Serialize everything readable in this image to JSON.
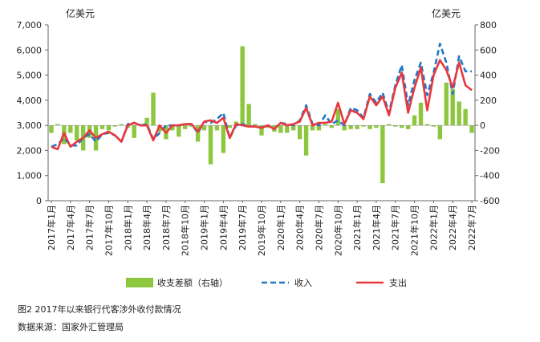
{
  "chart_data": {
    "type": "bar+line",
    "left_unit": "亿美元",
    "right_unit": "亿美元",
    "left_axis": {
      "min": 0,
      "max": 7000,
      "step": 1000,
      "ticks": [
        "0",
        "1,000",
        "2,000",
        "3,000",
        "4,000",
        "5,000",
        "6,000",
        "7,000"
      ]
    },
    "right_axis": {
      "min": -600,
      "max": 800,
      "step": 200,
      "ticks": [
        "-600",
        "-400",
        "-200",
        "0",
        "200",
        "400",
        "600",
        "800"
      ]
    },
    "x_tick_labels": [
      "2017年1月",
      "2017年4月",
      "2017年7月",
      "2017年10月",
      "2018年1月",
      "2018年4月",
      "2018年7月",
      "2018年10月",
      "2019年1月",
      "2019年4月",
      "2019年7月",
      "2019年10月",
      "2020年1月",
      "2020年4月",
      "2020年7月",
      "2020年10月",
      "2021年1月",
      "2021年4月",
      "2021年7月",
      "2021年10月",
      "2022年1月",
      "2022年4月",
      "2022年7月"
    ],
    "months_count": 67,
    "series": [
      {
        "name": "收支差额（右轴）",
        "kind": "bar",
        "axis": "right",
        "color": "#8dc63f",
        "values": [
          -60,
          10,
          -150,
          -60,
          -120,
          -200,
          -100,
          -200,
          -30,
          -40,
          -10,
          10,
          -20,
          -100,
          10,
          60,
          260,
          -50,
          -110,
          -40,
          -90,
          -30,
          -10,
          -130,
          -40,
          -310,
          -40,
          -220,
          -20,
          30,
          630,
          170,
          10,
          -80,
          -20,
          -50,
          -60,
          -60,
          -40,
          -110,
          -240,
          -40,
          -40,
          10,
          -20,
          130,
          -40,
          -30,
          -30,
          -10,
          -30,
          -20,
          -460,
          10,
          -10,
          -20,
          -30,
          80,
          180,
          10,
          -10,
          -110,
          340,
          290,
          190,
          130,
          -60
        ]
      },
      {
        "name": "收入",
        "kind": "line",
        "axis": "left",
        "color": "#1f77c8",
        "dash": true,
        "values": [
          2150,
          2250,
          2500,
          2200,
          2200,
          2500,
          2650,
          2350,
          2650,
          2700,
          2600,
          2350,
          3050,
          3100,
          3000,
          3050,
          2450,
          2700,
          3000,
          3000,
          3000,
          3050,
          3050,
          2700,
          3150,
          3100,
          3250,
          3500,
          2500,
          3000,
          3050,
          2950,
          2950,
          2900,
          3000,
          2850,
          3100,
          3050,
          3000,
          3200,
          3800,
          3050,
          3000,
          3400,
          3050,
          3200,
          3000,
          3700,
          3600,
          3300,
          4250,
          3900,
          4300,
          3500,
          4600,
          5400,
          3800,
          4800,
          5500,
          4200,
          5100,
          6250,
          5500,
          4250,
          5750,
          5150,
          5150
        ]
      },
      {
        "name": "支出",
        "kind": "line",
        "axis": "left",
        "color": "#e8383d",
        "dash": false,
        "values": [
          2150,
          2050,
          2700,
          2150,
          2350,
          2500,
          2800,
          2500,
          2650,
          2750,
          2600,
          2350,
          3000,
          3100,
          3000,
          3000,
          2400,
          3000,
          2700,
          3000,
          3000,
          3050,
          3050,
          2750,
          3150,
          3200,
          3100,
          3300,
          2500,
          3050,
          3000,
          2950,
          2950,
          2900,
          3000,
          2850,
          3100,
          3000,
          3050,
          3150,
          3700,
          3000,
          3100,
          3100,
          3150,
          3900,
          3050,
          3600,
          3500,
          3250,
          4150,
          3800,
          4150,
          3400,
          4500,
          5100,
          3500,
          4500,
          5300,
          3600,
          5000,
          5600,
          5200,
          4500,
          5500,
          4600,
          4400
        ]
      }
    ],
    "legend": [
      "收支差额（右轴）",
      "收入",
      "支出"
    ],
    "legend_position": "bottom"
  },
  "caption": {
    "figure": "图2   2017年以来银行代客涉外收付款情况",
    "source": "数据来源：国家外汇管理局"
  }
}
